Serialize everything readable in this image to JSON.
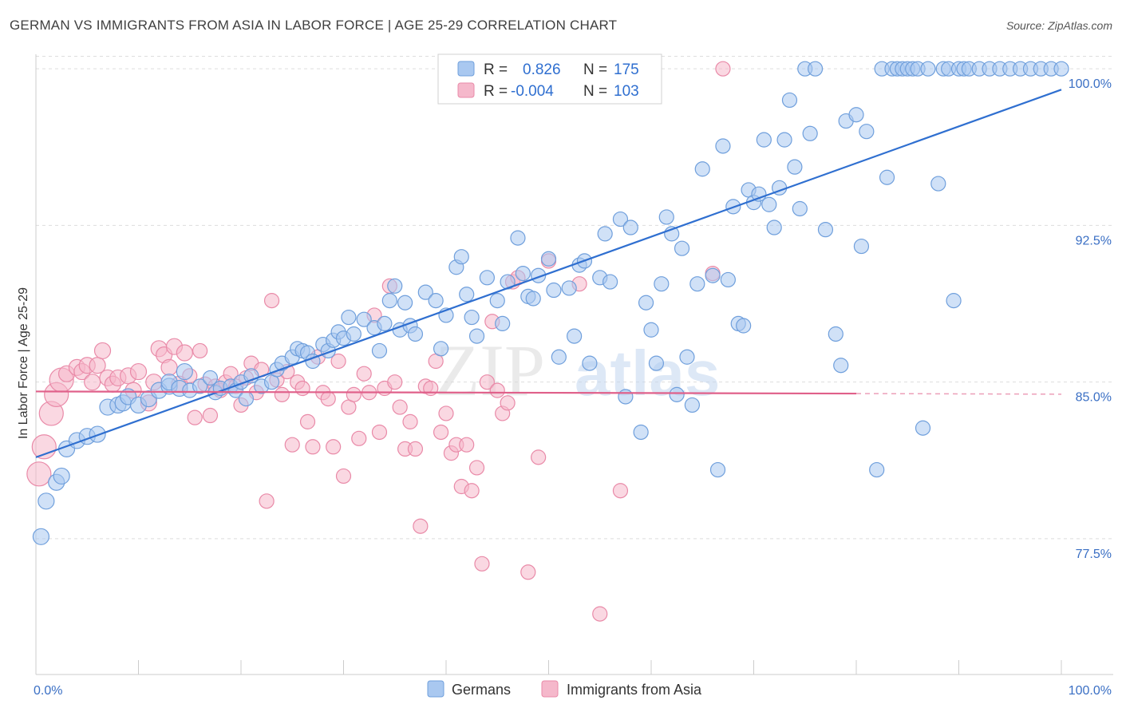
{
  "title": "GERMAN VS IMMIGRANTS FROM ASIA IN LABOR FORCE | AGE 25-29 CORRELATION CHART",
  "source": "Source: ZipAtlas.com",
  "watermark": {
    "part1": "ZIP",
    "part2": "atlas"
  },
  "colors": {
    "blue_fill": "#a9c8f0",
    "blue_stroke": "#6f9fdc",
    "blue_line": "#2f6fd0",
    "pink_fill": "#f5b8cb",
    "pink_stroke": "#e98aa8",
    "pink_line": "#e0608a",
    "tick_text": "#3a6fc4",
    "grid": "#dddddd"
  },
  "legend": {
    "rows": [
      {
        "r_label": "R = ",
        "r_value": "0.826",
        "n_label": "N = ",
        "n_value": "175"
      },
      {
        "r_label": "R = ",
        "r_value": "-0.004",
        "n_label": "N = ",
        "n_value": "103"
      }
    ]
  },
  "chart_data": {
    "type": "scatter",
    "title": "GERMAN VS IMMIGRANTS FROM ASIA IN LABOR FORCE | AGE 25-29 CORRELATION CHART",
    "xlabel": "",
    "ylabel": "In Labor Force | Age 25-29",
    "xlim": [
      0,
      100
    ],
    "ylim": [
      71,
      101
    ],
    "x_tick_labels": [
      "0.0%",
      "100.0%"
    ],
    "y_ticks": [
      77.5,
      85.0,
      92.5,
      100.0
    ],
    "y_tick_labels": [
      "77.5%",
      "85.0%",
      "92.5%",
      "100.0%"
    ],
    "grid": true,
    "legend_position": "top-center",
    "series": [
      {
        "name": "Germans",
        "color": "#a9c8f0",
        "r": 0.826,
        "n": 175,
        "trend": {
          "x": [
            0,
            100
          ],
          "y": [
            81.4,
            99.0
          ]
        },
        "points": [
          [
            0.5,
            77.6
          ],
          [
            1,
            79.3
          ],
          [
            2,
            80.2
          ],
          [
            2.5,
            80.5
          ],
          [
            3,
            81.8
          ],
          [
            4,
            82.2
          ],
          [
            5,
            82.4
          ],
          [
            6,
            82.5
          ],
          [
            7,
            83.8
          ],
          [
            8,
            83.9
          ],
          [
            8.5,
            84.0
          ],
          [
            9,
            84.3
          ],
          [
            10,
            83.9
          ],
          [
            11,
            84.2
          ],
          [
            12,
            84.6
          ],
          [
            13,
            84.8
          ],
          [
            13,
            85.0
          ],
          [
            14,
            84.7
          ],
          [
            14.5,
            85.5
          ],
          [
            15,
            84.6
          ],
          [
            16,
            84.8
          ],
          [
            17,
            85.2
          ],
          [
            17.5,
            84.5
          ],
          [
            18,
            84.7
          ],
          [
            19,
            84.8
          ],
          [
            19.5,
            84.6
          ],
          [
            20,
            85.0
          ],
          [
            20.5,
            84.2
          ],
          [
            21,
            85.3
          ],
          [
            22,
            84.8
          ],
          [
            23,
            85.0
          ],
          [
            23.5,
            85.6
          ],
          [
            24,
            85.9
          ],
          [
            25,
            86.2
          ],
          [
            25.5,
            86.6
          ],
          [
            26,
            86.5
          ],
          [
            26.5,
            86.4
          ],
          [
            27,
            86.0
          ],
          [
            28,
            86.8
          ],
          [
            28.5,
            86.5
          ],
          [
            29,
            87.0
          ],
          [
            29.5,
            87.4
          ],
          [
            30,
            87.1
          ],
          [
            30.5,
            88.1
          ],
          [
            31,
            87.3
          ],
          [
            32,
            88.0
          ],
          [
            33,
            87.6
          ],
          [
            33.5,
            86.5
          ],
          [
            34,
            87.8
          ],
          [
            34.5,
            88.9
          ],
          [
            35,
            89.6
          ],
          [
            35.5,
            87.5
          ],
          [
            36,
            88.8
          ],
          [
            36.5,
            87.7
          ],
          [
            37,
            87.3
          ],
          [
            38,
            89.3
          ],
          [
            39,
            88.9
          ],
          [
            39.5,
            86.6
          ],
          [
            40,
            88.2
          ],
          [
            41,
            90.5
          ],
          [
            41.5,
            91.0
          ],
          [
            42,
            89.2
          ],
          [
            42.5,
            88.1
          ],
          [
            43,
            87.2
          ],
          [
            44,
            90.0
          ],
          [
            45,
            88.9
          ],
          [
            45.5,
            87.8
          ],
          [
            46,
            89.8
          ],
          [
            47,
            91.9
          ],
          [
            47.5,
            90.2
          ],
          [
            48,
            89.1
          ],
          [
            48.5,
            89.0
          ],
          [
            49,
            90.1
          ],
          [
            50,
            90.9
          ],
          [
            50.5,
            89.4
          ],
          [
            51,
            86.2
          ],
          [
            52,
            89.5
          ],
          [
            52.5,
            87.2
          ],
          [
            53,
            90.6
          ],
          [
            53.5,
            90.8
          ],
          [
            54,
            85.9
          ],
          [
            55,
            90.0
          ],
          [
            55.5,
            92.1
          ],
          [
            56,
            89.8
          ],
          [
            57,
            92.8
          ],
          [
            57.5,
            84.3
          ],
          [
            58,
            92.4
          ],
          [
            59,
            82.6
          ],
          [
            59.5,
            88.8
          ],
          [
            60,
            87.5
          ],
          [
            60.5,
            85.9
          ],
          [
            61,
            89.7
          ],
          [
            61.5,
            92.9
          ],
          [
            62,
            92.1
          ],
          [
            62.5,
            84.4
          ],
          [
            63,
            91.4
          ],
          [
            63.5,
            86.2
          ],
          [
            64,
            83.9
          ],
          [
            64.5,
            89.7
          ],
          [
            65,
            95.2
          ],
          [
            66,
            90.1
          ],
          [
            66.5,
            80.8
          ],
          [
            67,
            96.3
          ],
          [
            67.5,
            89.9
          ],
          [
            68,
            93.4
          ],
          [
            68.5,
            87.8
          ],
          [
            69,
            87.7
          ],
          [
            69.5,
            94.2
          ],
          [
            70,
            93.6
          ],
          [
            70.5,
            94.0
          ],
          [
            71,
            96.6
          ],
          [
            71.5,
            93.5
          ],
          [
            72,
            92.4
          ],
          [
            72.5,
            94.3
          ],
          [
            73,
            96.6
          ],
          [
            73.5,
            98.5
          ],
          [
            74,
            95.3
          ],
          [
            74.5,
            93.3
          ],
          [
            75,
            100.0
          ],
          [
            75.5,
            96.9
          ],
          [
            76,
            100.0
          ],
          [
            77,
            92.3
          ],
          [
            78,
            87.3
          ],
          [
            78.5,
            85.8
          ],
          [
            79,
            97.5
          ],
          [
            80,
            97.8
          ],
          [
            80.5,
            91.5
          ],
          [
            81,
            97.0
          ],
          [
            82,
            80.8
          ],
          [
            82.5,
            100.0
          ],
          [
            83,
            94.8
          ],
          [
            83.5,
            100.0
          ],
          [
            84,
            100.0
          ],
          [
            84.5,
            100.0
          ],
          [
            85,
            100.0
          ],
          [
            85.5,
            100.0
          ],
          [
            86,
            100.0
          ],
          [
            86.5,
            82.8
          ],
          [
            87,
            100.0
          ],
          [
            88,
            94.5
          ],
          [
            88.5,
            100.0
          ],
          [
            89,
            100.0
          ],
          [
            89.5,
            88.9
          ],
          [
            90,
            100.0
          ],
          [
            90.5,
            100.0
          ],
          [
            91,
            100.0
          ],
          [
            92,
            100.0
          ],
          [
            93,
            100.0
          ],
          [
            94,
            100.0
          ],
          [
            95,
            100.0
          ],
          [
            96,
            100.0
          ],
          [
            97,
            100.0
          ],
          [
            98,
            100.0
          ],
          [
            99,
            100.0
          ],
          [
            100,
            100.0
          ]
        ]
      },
      {
        "name": "Immigrants from Asia",
        "color": "#f5b8cb",
        "r": -0.004,
        "n": 103,
        "trend": {
          "x": [
            0,
            80
          ],
          "y": [
            84.55,
            84.45
          ]
        },
        "trend_dashed": {
          "x": [
            80,
            100
          ],
          "y": [
            84.45,
            84.42
          ]
        },
        "points": [
          [
            0.3,
            80.6
          ],
          [
            0.8,
            81.9
          ],
          [
            1.5,
            83.5
          ],
          [
            2,
            84.4
          ],
          [
            2.5,
            85.1
          ],
          [
            3,
            85.4
          ],
          [
            4,
            85.7
          ],
          [
            4.5,
            85.5
          ],
          [
            5,
            85.8
          ],
          [
            5.5,
            85.0
          ],
          [
            6,
            85.8
          ],
          [
            6.5,
            86.5
          ],
          [
            7,
            85.2
          ],
          [
            7.5,
            84.9
          ],
          [
            8,
            85.2
          ],
          [
            9,
            85.3
          ],
          [
            9.5,
            84.6
          ],
          [
            10,
            85.5
          ],
          [
            11,
            84.0
          ],
          [
            11.5,
            85.0
          ],
          [
            12,
            86.6
          ],
          [
            12.5,
            86.3
          ],
          [
            13,
            85.7
          ],
          [
            13.5,
            86.7
          ],
          [
            14,
            84.9
          ],
          [
            14.5,
            86.4
          ],
          [
            15,
            85.3
          ],
          [
            15.5,
            83.3
          ],
          [
            16,
            86.5
          ],
          [
            16.5,
            84.9
          ],
          [
            17,
            83.4
          ],
          [
            17.5,
            84.8
          ],
          [
            18,
            84.6
          ],
          [
            18.5,
            85.0
          ],
          [
            19,
            85.4
          ],
          [
            19.5,
            84.8
          ],
          [
            20,
            83.9
          ],
          [
            20.5,
            85.2
          ],
          [
            21,
            85.9
          ],
          [
            21.5,
            84.5
          ],
          [
            22,
            85.6
          ],
          [
            22.5,
            79.3
          ],
          [
            23,
            88.9
          ],
          [
            23.5,
            85.1
          ],
          [
            24,
            84.4
          ],
          [
            24.5,
            85.5
          ],
          [
            25,
            82.0
          ],
          [
            25.5,
            85.0
          ],
          [
            26,
            84.7
          ],
          [
            26.5,
            83.1
          ],
          [
            27,
            81.9
          ],
          [
            27.5,
            86.2
          ],
          [
            28,
            84.5
          ],
          [
            28.5,
            84.2
          ],
          [
            29,
            81.9
          ],
          [
            29.5,
            86.0
          ],
          [
            30,
            80.5
          ],
          [
            30.5,
            83.8
          ],
          [
            31,
            84.4
          ],
          [
            31.5,
            82.3
          ],
          [
            32,
            85.4
          ],
          [
            32.5,
            84.5
          ],
          [
            33,
            88.2
          ],
          [
            33.5,
            82.6
          ],
          [
            34,
            84.7
          ],
          [
            34.5,
            89.6
          ],
          [
            35,
            85.0
          ],
          [
            35.5,
            83.8
          ],
          [
            36,
            81.8
          ],
          [
            36.5,
            83.1
          ],
          [
            37,
            81.8
          ],
          [
            37.5,
            78.1
          ],
          [
            38,
            84.8
          ],
          [
            38.5,
            84.7
          ],
          [
            39,
            86.0
          ],
          [
            39.5,
            82.6
          ],
          [
            40,
            83.5
          ],
          [
            40.5,
            81.6
          ],
          [
            41,
            82.0
          ],
          [
            41.5,
            80.0
          ],
          [
            42,
            82.0
          ],
          [
            42.5,
            79.8
          ],
          [
            43,
            80.9
          ],
          [
            43.5,
            76.3
          ],
          [
            44,
            85.0
          ],
          [
            44.5,
            87.9
          ],
          [
            45,
            84.6
          ],
          [
            45.5,
            83.5
          ],
          [
            46,
            84.0
          ],
          [
            46.5,
            89.8
          ],
          [
            47,
            90.0
          ],
          [
            48,
            75.9
          ],
          [
            49,
            81.4
          ],
          [
            50,
            90.8
          ],
          [
            53,
            89.7
          ],
          [
            55,
            73.9
          ],
          [
            57,
            79.8
          ],
          [
            66,
            90.2
          ],
          [
            67,
            100.0
          ]
        ]
      }
    ]
  },
  "bottom_legend": {
    "germans": "Germans",
    "immigrants": "Immigrants from Asia"
  }
}
